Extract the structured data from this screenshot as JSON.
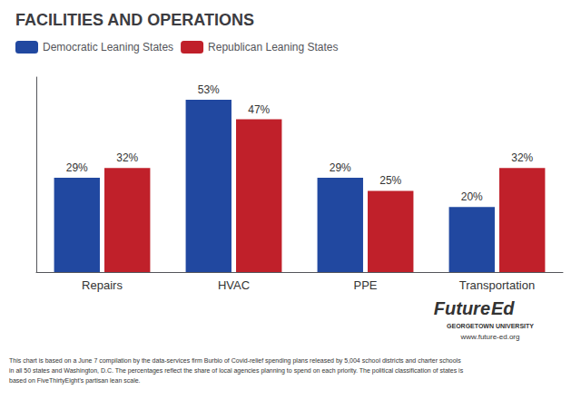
{
  "chart_data": {
    "type": "bar",
    "title": "FACILITIES AND OPERATIONS",
    "categories": [
      "Repairs",
      "HVAC",
      "PPE",
      "Transportation"
    ],
    "series": [
      {
        "name": "Democratic Leaning States",
        "color": "#2148a0",
        "values": [
          29,
          53,
          29,
          20
        ],
        "value_labels": [
          "29%",
          "53%",
          "29%",
          "20%"
        ]
      },
      {
        "name": "Republican Leaning States",
        "color": "#c0202a",
        "values": [
          32,
          47,
          25,
          32
        ],
        "value_labels": [
          "32%",
          "47%",
          "25%",
          "32%"
        ]
      }
    ],
    "ylim": [
      0,
      60
    ],
    "grid": false,
    "legend": "upper left",
    "data_labels": true,
    "tick_labels": "x",
    "annotations": [
      "This chart is based on a June 7 compilation by the data-services firm Burbio of Covid-relief spending plans released by 5,004 school districts and charter schools\nin all 50 states and Washington, D.C. The percentages reflect the share of local agencies planning to spend on each priority. The political classification of states is\nbased on FiveThirtyEight's partisan lean scale.",
      "Future",
      "Ed",
      "GEORGETOWN UNIVERSITY",
      "www.future-ed.org"
    ]
  }
}
